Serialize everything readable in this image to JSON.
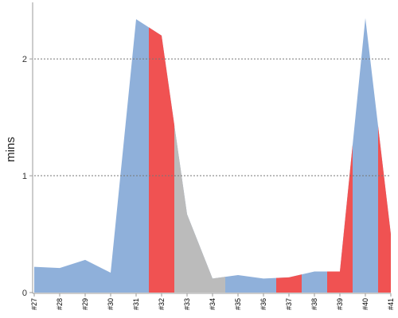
{
  "chart_data": {
    "type": "area",
    "categories": [
      "#27",
      "#28",
      "#29",
      "#30",
      "#31",
      "#32",
      "#33",
      "#34",
      "#35",
      "#36",
      "#37",
      "#38",
      "#39",
      "#40",
      "#41"
    ],
    "values": [
      0.22,
      0.21,
      0.28,
      0.17,
      2.34,
      2.2,
      0.67,
      0.12,
      0.15,
      0.12,
      0.13,
      0.18,
      0.18,
      2.35,
      0.5
    ],
    "highlights": [
      {
        "from": 4.5,
        "to": 5.5,
        "color": "#f05252"
      },
      {
        "from": 5.5,
        "to": 7.5,
        "color": "#bbbbbb"
      },
      {
        "from": 9.5,
        "to": 10.5,
        "color": "#f05252"
      },
      {
        "from": 11.5,
        "to": 12.5,
        "color": "#f05252"
      },
      {
        "from": 13.5,
        "to": 14.5,
        "color": "#f05252"
      }
    ],
    "ylabel": "mins",
    "xlabel": "",
    "ylim": [
      0,
      2.45
    ],
    "yticks": [
      0,
      1,
      2
    ],
    "ytick_labels": [
      "0",
      "1",
      "2"
    ],
    "grid": true,
    "colors": {
      "area": "#8fb0da",
      "grid": "#777777",
      "axis": "#999999"
    }
  }
}
